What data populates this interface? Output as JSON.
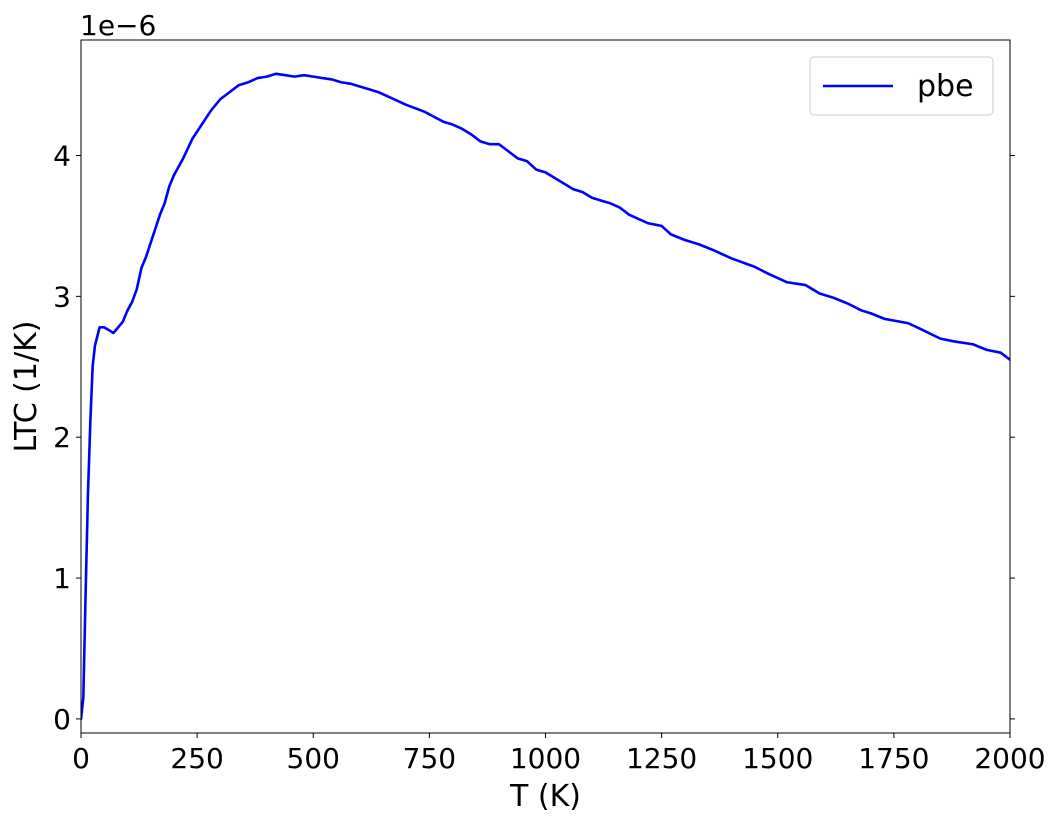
{
  "chart_data": {
    "type": "line",
    "xlabel": "T (K)",
    "ylabel": "LTC (1/K)",
    "y_scale_label": "1e−6",
    "y_scale_factor": 1e-06,
    "xlim": [
      0,
      2000
    ],
    "ylim": [
      -0.1,
      4.82
    ],
    "xticks": [
      0,
      250,
      500,
      750,
      1000,
      1250,
      1500,
      1750,
      2000
    ],
    "yticks": [
      0,
      1,
      2,
      3,
      4
    ],
    "grid": false,
    "legend_position": "top-right",
    "series": [
      {
        "name": "pbe",
        "color": "#0000ff",
        "x": [
          0,
          5,
          10,
          15,
          20,
          25,
          30,
          40,
          50,
          60,
          70,
          80,
          90,
          100,
          110,
          120,
          130,
          140,
          150,
          160,
          170,
          180,
          190,
          200,
          220,
          240,
          260,
          280,
          300,
          320,
          340,
          360,
          380,
          400,
          420,
          440,
          460,
          480,
          500,
          520,
          540,
          560,
          580,
          600,
          620,
          640,
          660,
          680,
          700,
          740,
          780,
          800,
          820,
          840,
          860,
          880,
          900,
          920,
          940,
          960,
          980,
          1000,
          1020,
          1040,
          1060,
          1080,
          1100,
          1120,
          1140,
          1160,
          1180,
          1200,
          1220,
          1250,
          1270,
          1300,
          1330,
          1360,
          1400,
          1450,
          1480,
          1520,
          1560,
          1590,
          1620,
          1650,
          1680,
          1700,
          1730,
          1780,
          1800,
          1850,
          1880,
          1920,
          1950,
          1980,
          2000
        ],
        "y": [
          0.0,
          0.15,
          0.9,
          1.6,
          2.1,
          2.5,
          2.65,
          2.78,
          2.78,
          2.76,
          2.74,
          2.78,
          2.82,
          2.9,
          2.96,
          3.05,
          3.2,
          3.28,
          3.38,
          3.48,
          3.58,
          3.66,
          3.78,
          3.86,
          3.98,
          4.12,
          4.22,
          4.32,
          4.4,
          4.45,
          4.5,
          4.52,
          4.55,
          4.56,
          4.58,
          4.57,
          4.56,
          4.57,
          4.56,
          4.55,
          4.54,
          4.52,
          4.51,
          4.49,
          4.47,
          4.45,
          4.42,
          4.39,
          4.36,
          4.31,
          4.24,
          4.22,
          4.19,
          4.15,
          4.1,
          4.08,
          4.08,
          4.03,
          3.98,
          3.96,
          3.9,
          3.88,
          3.84,
          3.8,
          3.76,
          3.74,
          3.7,
          3.68,
          3.66,
          3.63,
          3.58,
          3.55,
          3.52,
          3.5,
          3.44,
          3.4,
          3.37,
          3.33,
          3.27,
          3.21,
          3.16,
          3.1,
          3.08,
          3.02,
          2.99,
          2.95,
          2.9,
          2.88,
          2.84,
          2.81,
          2.78,
          2.7,
          2.68,
          2.66,
          2.62,
          2.6,
          2.55
        ]
      }
    ]
  }
}
